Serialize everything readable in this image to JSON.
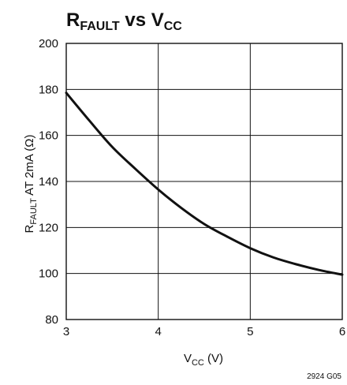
{
  "chart_data": {
    "type": "line",
    "title": {
      "part1": "R",
      "part1_sub": "FAULT",
      "part2": " vs V",
      "part2_sub": "CC"
    },
    "xlabel": {
      "main": "V",
      "sub": "CC",
      "rest": " (V)"
    },
    "ylabel": {
      "main": "R",
      "sub": "FAULT",
      "rest": " AT 2mA (Ω)"
    },
    "xlim": [
      3,
      6
    ],
    "ylim": [
      80,
      200
    ],
    "x_ticks": [
      3,
      4,
      5,
      6
    ],
    "y_ticks": [
      80,
      100,
      120,
      140,
      160,
      180,
      200
    ],
    "grid": true,
    "series": [
      {
        "x": [
          3.0,
          3.25,
          3.5,
          3.75,
          4.0,
          4.25,
          4.5,
          4.75,
          5.0,
          5.25,
          5.5,
          5.75,
          6.0
        ],
        "y": [
          178.5,
          166.5,
          155.0,
          145.5,
          136.5,
          128.5,
          121.5,
          116.0,
          111.0,
          107.0,
          104.0,
          101.5,
          99.5
        ]
      }
    ],
    "figure_id": "2924 G05"
  }
}
